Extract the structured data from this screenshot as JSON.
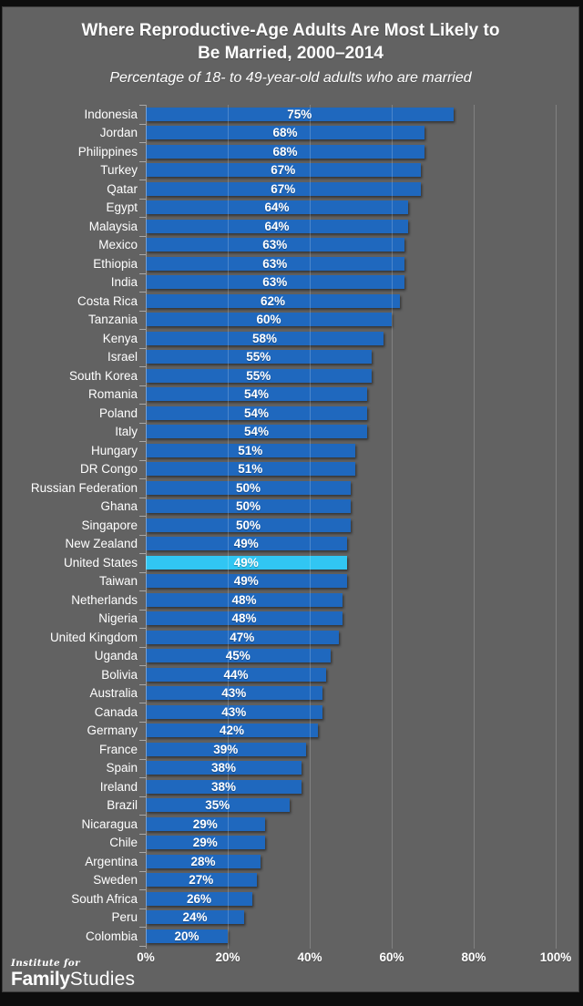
{
  "title": {
    "line1": "Where Reproductive-Age Adults Are Most Likely to",
    "line2": "Be Married, 2000–2014",
    "subtitle": "Percentage of 18- to 49-year-old adults who are married"
  },
  "chart_data": {
    "type": "bar",
    "orientation": "horizontal",
    "title": "Where Reproductive-Age Adults Are Most Likely to Be Married, 2000–2014",
    "subtitle": "Percentage of 18- to 49-year-old adults who are married",
    "categories": [
      "Indonesia",
      "Jordan",
      "Philippines",
      "Turkey",
      "Qatar",
      "Egypt",
      "Malaysia",
      "Mexico",
      "Ethiopia",
      "India",
      "Costa Rica",
      "Tanzania",
      "Kenya",
      "Israel",
      "South Korea",
      "Romania",
      "Poland",
      "Italy",
      "Hungary",
      "DR Congo",
      "Russian Federation",
      "Ghana",
      "Singapore",
      "New Zealand",
      "United States",
      "Taiwan",
      "Netherlands",
      "Nigeria",
      "United Kingdom",
      "Uganda",
      "Bolivia",
      "Australia",
      "Canada",
      "Germany",
      "France",
      "Spain",
      "Ireland",
      "Brazil",
      "Nicaragua",
      "Chile",
      "Argentina",
      "Sweden",
      "South Africa",
      "Peru",
      "Colombia"
    ],
    "values": [
      75,
      68,
      68,
      67,
      67,
      64,
      64,
      63,
      63,
      63,
      62,
      60,
      58,
      55,
      55,
      54,
      54,
      54,
      51,
      51,
      50,
      50,
      50,
      49,
      49,
      49,
      48,
      48,
      47,
      45,
      44,
      43,
      43,
      42,
      39,
      38,
      38,
      35,
      29,
      29,
      28,
      27,
      26,
      24,
      20
    ],
    "value_suffix": "%",
    "highlight_category": "United States",
    "highlight_index": 24,
    "xlim": [
      0,
      100
    ],
    "x_ticks": [
      "0%",
      "20%",
      "40%",
      "60%",
      "80%",
      "100%"
    ],
    "x_tick_values": [
      0,
      20,
      40,
      60,
      80,
      100
    ],
    "grid": "vertical",
    "legend": "none",
    "bar_color": "#1f68be",
    "highlight_color": "#31c6f3",
    "background_color": "#626262",
    "text_color": "#ffffff"
  },
  "footer": {
    "institute": "Institute for",
    "family": "Family",
    "studies": "Studies"
  }
}
